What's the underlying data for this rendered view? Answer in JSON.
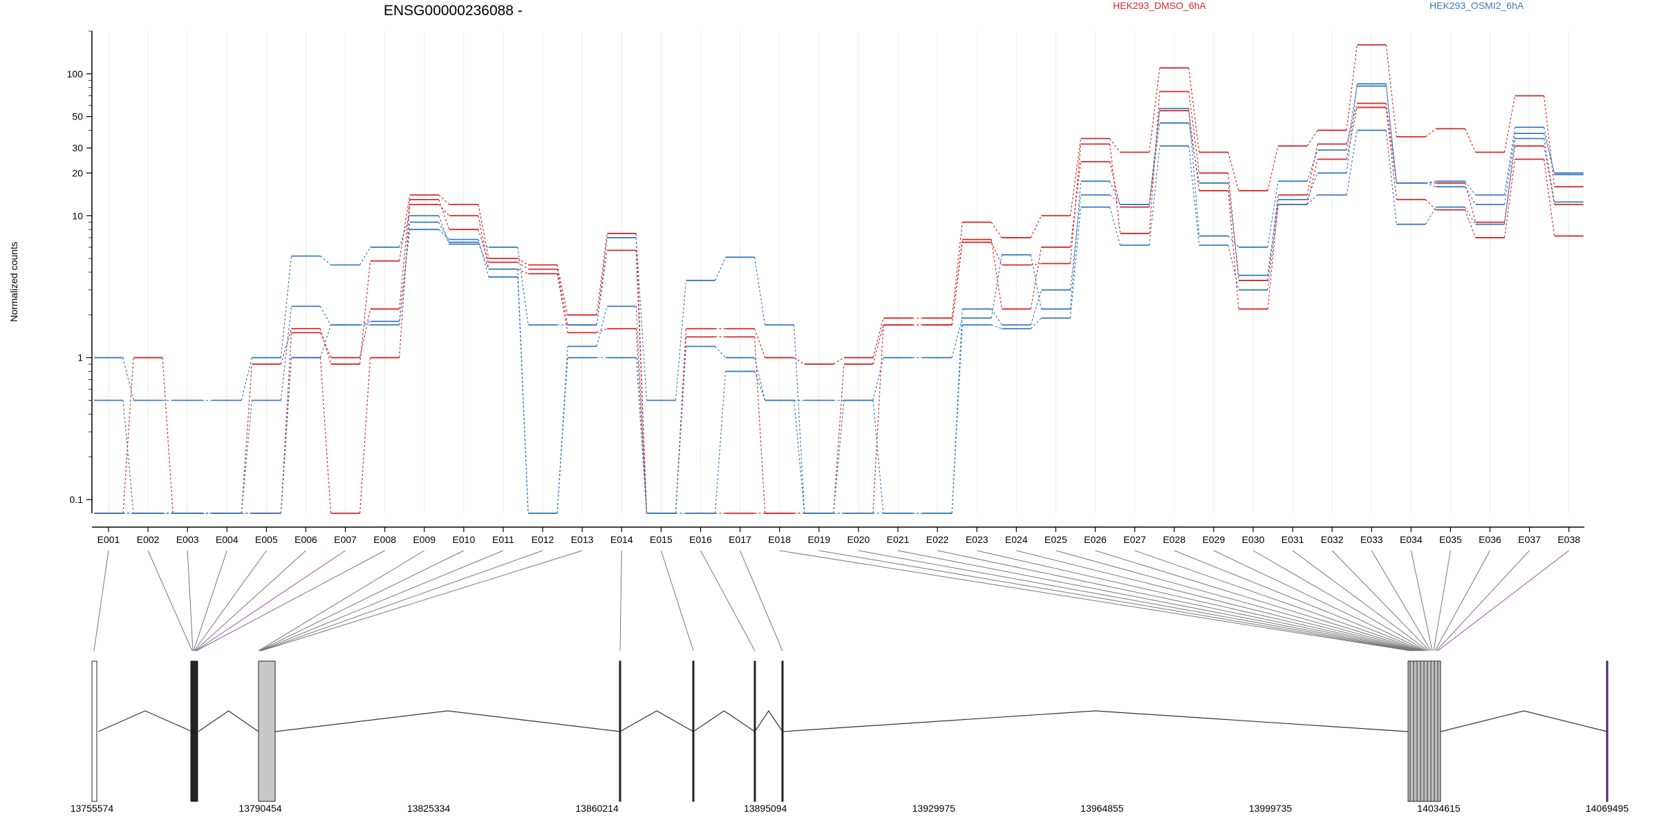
{
  "chart_data": {
    "type": "line",
    "title": "ENSG00000236088 -",
    "ylabel": "Normalized counts",
    "y_scale": "log",
    "y_ticks": [
      "0.1",
      "1",
      "10",
      "20",
      "30",
      "50",
      "100"
    ],
    "y_tick_values": [
      0.1,
      1,
      10,
      20,
      30,
      50,
      100
    ],
    "ylim": [
      0.08,
      200
    ],
    "categories": [
      "E001",
      "E002",
      "E003",
      "E004",
      "E005",
      "E006",
      "E007",
      "E008",
      "E009",
      "E010",
      "E011",
      "E012",
      "E013",
      "E014",
      "E015",
      "E016",
      "E017",
      "E018",
      "E019",
      "E020",
      "E021",
      "E022",
      "E023",
      "E024",
      "E025",
      "E026",
      "E027",
      "E028",
      "E029",
      "E030",
      "E031",
      "E032",
      "E033",
      "E034",
      "E035",
      "E036",
      "E037",
      "E038"
    ],
    "legend": [
      {
        "name": "HEK293_DMSO_6hA",
        "color": "#d62728"
      },
      {
        "name": "HEK293_OSMI2_6hA",
        "color": "#3a7bbf"
      }
    ],
    "series": [
      {
        "group": "HEK293_DMSO_6hA",
        "color": "#d62728",
        "values": [
          0.08,
          1,
          0.08,
          0.08,
          0.9,
          1.6,
          0.9,
          4.8,
          14,
          12,
          5,
          4.5,
          2,
          7.5,
          0.08,
          1.6,
          1.6,
          1,
          0.9,
          1,
          1.9,
          1.9,
          9,
          7,
          10,
          35,
          28,
          110,
          28,
          15,
          31,
          40,
          160,
          36,
          41,
          28,
          70,
          16
        ]
      },
      {
        "group": "HEK293_DMSO_6hA",
        "color": "#d62728",
        "values": [
          0.08,
          0.08,
          0.08,
          0.08,
          0.08,
          1,
          0.08,
          1,
          12,
          10,
          4.2,
          3.9,
          1.5,
          1.6,
          0.08,
          1.4,
          1.4,
          0.08,
          0.08,
          0.9,
          1.7,
          1.7,
          6.5,
          4.5,
          4.6,
          32,
          7.5,
          75,
          20,
          3.5,
          14,
          32,
          62,
          17,
          17,
          9,
          31,
          12
        ]
      },
      {
        "group": "HEK293_DMSO_6hA",
        "color": "#d62728",
        "values": [
          0.08,
          0.08,
          0.08,
          0.08,
          0.08,
          1.5,
          1,
          2.2,
          13,
          8,
          4.7,
          4.2,
          1.7,
          5.7,
          0.08,
          0.08,
          0.08,
          0.08,
          0.08,
          0.08,
          1.7,
          1.7,
          6.8,
          2.2,
          6,
          24,
          11.5,
          55,
          15,
          2.2,
          12,
          25,
          58,
          13,
          11,
          7,
          25,
          7.2
        ]
      },
      {
        "group": "HEK293_OSMI2_6hA",
        "color": "#3a7bbf",
        "values": [
          1,
          0.5,
          0.5,
          0.5,
          1,
          5.2,
          4.5,
          6,
          10,
          6.3,
          6,
          1.7,
          1.7,
          7,
          0.5,
          3.5,
          5.1,
          1.7,
          0.08,
          0.5,
          1,
          1,
          1.9,
          5.3,
          2.2,
          17.5,
          12,
          57,
          7.2,
          6,
          17.5,
          29,
          82,
          17,
          17.5,
          14,
          42,
          20
        ]
      },
      {
        "group": "HEK293_OSMI2_6hA",
        "color": "#3a7bbf",
        "values": [
          0.5,
          0.08,
          0.08,
          0.08,
          0.5,
          2.3,
          1.7,
          1.7,
          9,
          6.5,
          4.2,
          0.08,
          1.2,
          2.3,
          0.08,
          1.2,
          1,
          0.5,
          0.5,
          0.5,
          0.08,
          0.08,
          2.2,
          1.7,
          3,
          14,
          12,
          45,
          17,
          3.8,
          13,
          20,
          85,
          17,
          16,
          12,
          38,
          19.5
        ]
      },
      {
        "group": "HEK293_OSMI2_6hA",
        "color": "#3a7bbf",
        "values": [
          0.08,
          0.08,
          0.08,
          0.08,
          0.08,
          1,
          1.7,
          1.8,
          8,
          6.8,
          3.7,
          0.08,
          1,
          1,
          0.08,
          0.08,
          0.8,
          0.5,
          0.08,
          0.08,
          0.08,
          0.08,
          1.7,
          1.6,
          1.9,
          11.5,
          6.2,
          31,
          6.2,
          3,
          12,
          14,
          40,
          8.7,
          11.5,
          8.7,
          35,
          12.5
        ]
      }
    ],
    "genome_ticks": [
      "13755574",
      "13790454",
      "13825334",
      "13860214",
      "13895094",
      "13929975",
      "13964855",
      "13999735",
      "14034615",
      "14069495"
    ],
    "genome_range": [
      13755574,
      14069495
    ]
  }
}
